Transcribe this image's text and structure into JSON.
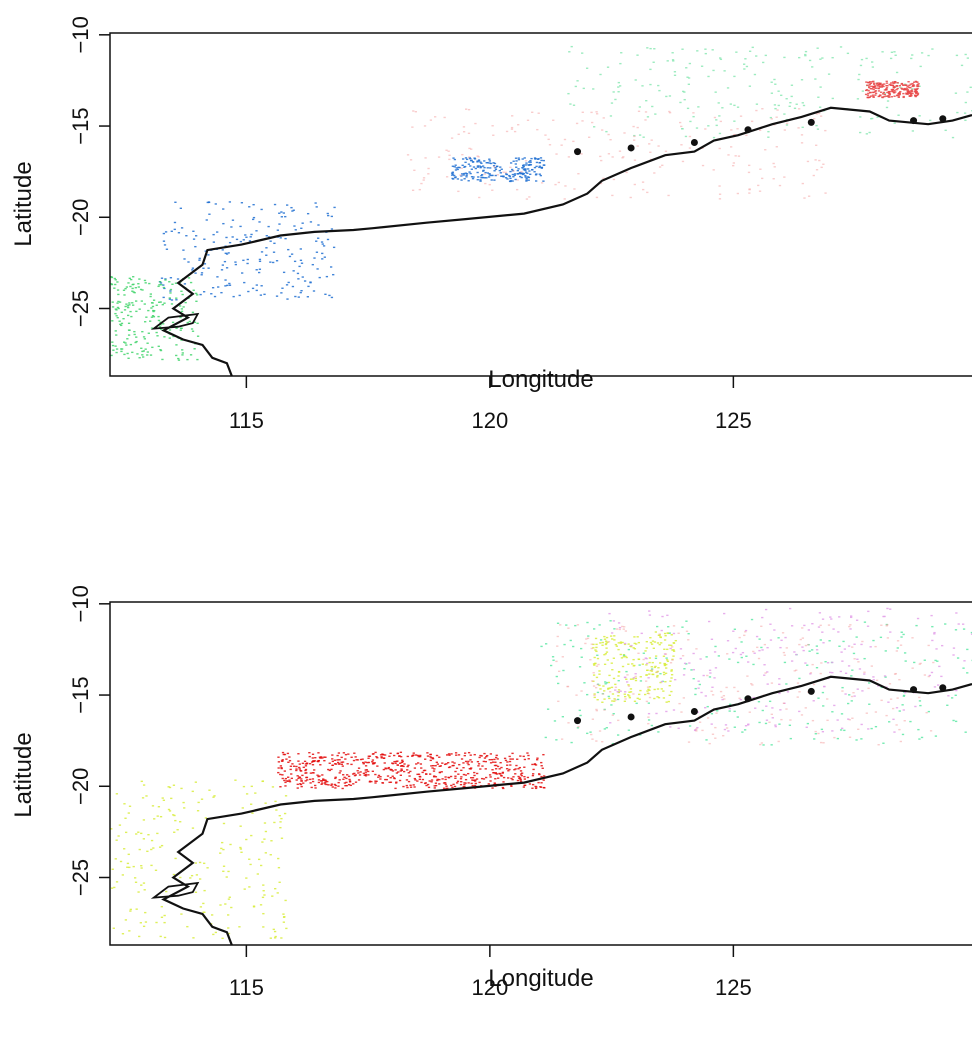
{
  "chart_data": [
    {
      "type": "map",
      "xlabel": "Longitude",
      "ylabel": "Latitude",
      "xlim": [
        112.2,
        129.9
      ],
      "ylim": [
        -28.7,
        -9.9
      ],
      "x_ticks": [
        115,
        120,
        125
      ],
      "y_ticks": [
        -10,
        -15,
        -20,
        -25
      ],
      "x_tick_labels": [
        "115",
        "120",
        "125"
      ],
      "y_tick_labels": [
        "−10",
        "−15",
        "−20",
        "−25"
      ],
      "colors": {
        "blue": "#1f6fd1",
        "green": "#3fd46a",
        "light_green": "#8be8b4",
        "pink": "#f4a3a3",
        "red": "#e84545",
        "yellow_green": "#d8ec3c"
      },
      "layers": [
        {
          "name": "northwest-blue",
          "color": "blue",
          "lon": [
            113.2,
            116.8
          ],
          "lat": [
            -24.5,
            -19.1
          ]
        },
        {
          "name": "offshore-blue",
          "color": "blue",
          "lon": [
            119.2,
            121.1
          ],
          "lat": [
            -18.0,
            -16.7
          ]
        },
        {
          "name": "southern-green",
          "color": "green",
          "lon": [
            112.2,
            114.0
          ],
          "lat": [
            -27.8,
            -23.2
          ]
        },
        {
          "name": "northern-green",
          "color": "light_green",
          "lon": [
            121.5,
            129.9
          ],
          "lat": [
            -15.6,
            -10.6
          ]
        },
        {
          "name": "pink-shelf",
          "color": "pink",
          "lon": [
            118.2,
            126.9
          ],
          "lat": [
            -19.0,
            -14.0
          ]
        },
        {
          "name": "red-patch",
          "color": "red",
          "lon": [
            127.7,
            128.8
          ],
          "lat": [
            -13.4,
            -12.5
          ]
        }
      ]
    },
    {
      "type": "map",
      "xlabel": "Longitude",
      "ylabel": "Latitude",
      "xlim": [
        112.2,
        129.9
      ],
      "ylim": [
        -28.7,
        -9.9
      ],
      "x_ticks": [
        115,
        120,
        125
      ],
      "y_ticks": [
        -10,
        -15,
        -20,
        -25
      ],
      "x_tick_labels": [
        "115",
        "120",
        "125"
      ],
      "y_tick_labels": [
        "−10",
        "−15",
        "−20",
        "−25"
      ],
      "colors": {
        "red": "#e30b0b",
        "light_green": "#5de8a5",
        "pink": "#f4a3a3",
        "violet": "#e3a0e9",
        "yellow_green": "#d8ec3c"
      },
      "layers": [
        {
          "name": "red-shelf",
          "color": "red",
          "lon": [
            115.6,
            121.1
          ],
          "lat": [
            -20.1,
            -18.1
          ]
        },
        {
          "name": "yellow-west-coast",
          "color": "yellow_green",
          "lon": [
            112.2,
            115.8
          ],
          "lat": [
            -28.3,
            -19.6
          ]
        },
        {
          "name": "yellow-north",
          "color": "yellow_green",
          "lon": [
            122.1,
            123.8
          ],
          "lat": [
            -15.4,
            -11.5
          ]
        },
        {
          "name": "green-north",
          "color": "light_green",
          "lon": [
            121.0,
            129.9
          ],
          "lat": [
            -17.7,
            -10.8
          ]
        },
        {
          "name": "violet-north",
          "color": "violet",
          "lon": [
            122.3,
            129.9
          ],
          "lat": [
            -17.0,
            -10.2
          ]
        },
        {
          "name": "pink-north",
          "color": "pink",
          "lon": [
            121.3,
            129.1
          ],
          "lat": [
            -17.7,
            -11.1
          ]
        }
      ]
    }
  ]
}
